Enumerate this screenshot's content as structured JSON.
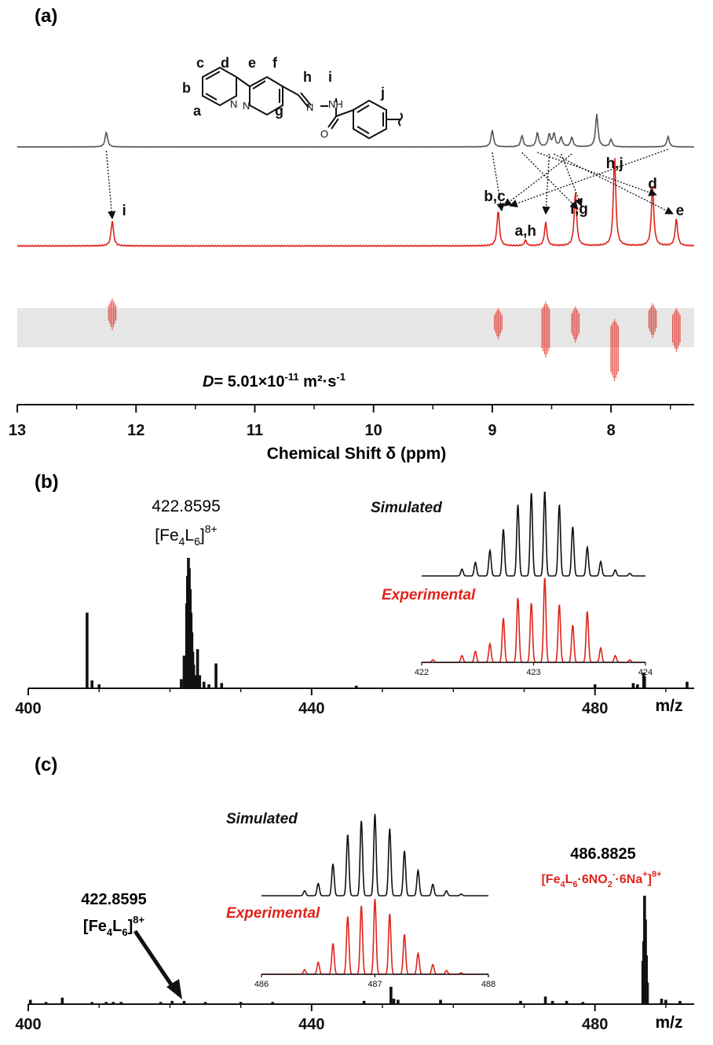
{
  "colors": {
    "black": "#111111",
    "grey": "#555555",
    "red": "#e0231b",
    "band": "#e6e6e6"
  },
  "chart_data": [
    {
      "panel_label": "(a)",
      "type": "line",
      "xlabel": "Chemical Shift δ (ppm)",
      "x_ticks": [
        "13",
        "12",
        "11",
        "10",
        "9",
        "8"
      ],
      "xlim": [
        13.0,
        7.3
      ],
      "x_reversed": true,
      "structure_labels": [
        "c",
        "d",
        "e",
        "f",
        "h",
        "i",
        "b",
        "j",
        "a",
        "g"
      ],
      "series": [
        {
          "color": "grey",
          "peaks": [
            [
              12.25,
              0.32
            ],
            [
              9.0,
              0.36
            ],
            [
              8.75,
              0.24
            ],
            [
              8.62,
              0.3
            ],
            [
              8.52,
              0.26
            ],
            [
              8.48,
              0.28
            ],
            [
              8.42,
              0.2
            ],
            [
              8.33,
              0.2
            ],
            [
              8.12,
              0.7
            ],
            [
              8.0,
              0.16
            ],
            [
              7.52,
              0.22
            ]
          ]
        },
        {
          "color": "red",
          "peaks": [
            [
              12.2,
              0.28
            ],
            [
              8.95,
              0.4
            ],
            [
              8.72,
              0.06
            ],
            [
              8.55,
              0.26
            ],
            [
              8.3,
              0.6
            ],
            [
              7.97,
              1.0
            ],
            [
              7.65,
              0.66
            ],
            [
              7.45,
              0.3
            ]
          ]
        }
      ],
      "peak_annotations": [
        {
          "text": "i",
          "x": 12.2
        },
        {
          "text": "b,c",
          "x": 8.95
        },
        {
          "text": "a,h",
          "x": 8.72
        },
        {
          "text": "f,g",
          "x": 8.3
        },
        {
          "text": "h,j",
          "x": 7.97
        },
        {
          "text": "d",
          "x": 7.65
        },
        {
          "text": "e",
          "x": 7.45
        }
      ],
      "dosy": {
        "d_prefix": "D",
        "d_text": "= 5.01×10",
        "d_exp": "-11",
        "d_unit": " m²·s",
        "d_unit_exp": "-1",
        "signals": [
          12.2,
          8.95,
          8.55,
          8.3,
          7.97,
          7.65,
          7.45
        ]
      }
    },
    {
      "panel_label": "(b)",
      "type": "bar",
      "xlabel": "m/z",
      "x_ticks": [
        "400",
        "440",
        "480"
      ],
      "xlim": [
        400,
        494
      ],
      "peaks": [
        [
          408.3,
          0.58
        ],
        [
          409.0,
          0.06
        ],
        [
          410.0,
          0.03
        ],
        [
          421.6,
          0.07
        ],
        [
          422.0,
          0.25
        ],
        [
          422.36,
          0.65
        ],
        [
          422.48,
          0.86
        ],
        [
          422.61,
          1.0
        ],
        [
          422.73,
          0.92
        ],
        [
          422.86,
          0.76
        ],
        [
          422.98,
          0.58
        ],
        [
          423.1,
          0.43
        ],
        [
          423.23,
          0.28
        ],
        [
          423.35,
          0.18
        ],
        [
          423.6,
          0.1
        ],
        [
          423.9,
          0.3
        ],
        [
          424.2,
          0.1
        ],
        [
          424.8,
          0.05
        ],
        [
          425.5,
          0.03
        ],
        [
          426.5,
          0.19
        ],
        [
          427.3,
          0.04
        ],
        [
          446.3,
          0.02
        ],
        [
          480.0,
          0.03
        ],
        [
          485.4,
          0.04
        ],
        [
          486.0,
          0.03
        ],
        [
          486.88,
          0.12
        ],
        [
          487.0,
          0.09
        ],
        [
          493.0,
          0.05
        ]
      ],
      "annotation": {
        "mz": "422.8595",
        "formula": "[Fe",
        "s1": "4",
        "m1": "L",
        "s2": "6",
        "m2": "]",
        "charge": "8+",
        "x": 422.6
      },
      "inset": {
        "simulated_label": "Simulated",
        "experimental_label": "Experimental",
        "x_ticks": [
          "422",
          "423",
          "424"
        ],
        "xlim": [
          422.0,
          424.0
        ],
        "simulated": [
          [
            422.36,
            0.08
          ],
          [
            422.48,
            0.16
          ],
          [
            422.61,
            0.3
          ],
          [
            422.73,
            0.55
          ],
          [
            422.86,
            0.84
          ],
          [
            422.98,
            0.98
          ],
          [
            423.1,
            1.0
          ],
          [
            423.23,
            0.84
          ],
          [
            423.35,
            0.58
          ],
          [
            423.48,
            0.34
          ],
          [
            423.6,
            0.17
          ],
          [
            423.73,
            0.07
          ],
          [
            423.86,
            0.03
          ]
        ],
        "experimental": [
          [
            422.1,
            0.03
          ],
          [
            422.36,
            0.08
          ],
          [
            422.48,
            0.13
          ],
          [
            422.61,
            0.22
          ],
          [
            422.73,
            0.52
          ],
          [
            422.86,
            0.76
          ],
          [
            422.98,
            0.7
          ],
          [
            423.1,
            1.0
          ],
          [
            423.23,
            0.68
          ],
          [
            423.35,
            0.44
          ],
          [
            423.48,
            0.6
          ],
          [
            423.6,
            0.17
          ],
          [
            423.73,
            0.08
          ],
          [
            423.86,
            0.03
          ]
        ]
      }
    },
    {
      "panel_label": "(c)",
      "type": "bar",
      "xlabel": "m/z",
      "x_ticks": [
        "400",
        "440",
        "480"
      ],
      "xlim": [
        400,
        494
      ],
      "peaks": [
        [
          400.3,
          0.04
        ],
        [
          402.5,
          0.02
        ],
        [
          404.8,
          0.06
        ],
        [
          409.0,
          0.02
        ],
        [
          411.0,
          0.02
        ],
        [
          412.0,
          0.02
        ],
        [
          413.1,
          0.02
        ],
        [
          418.7,
          0.02
        ],
        [
          420.3,
          0.03
        ],
        [
          422.0,
          0.03
        ],
        [
          425.0,
          0.02
        ],
        [
          430.0,
          0.02
        ],
        [
          434.5,
          0.02
        ],
        [
          447.4,
          0.03
        ],
        [
          451.2,
          0.16
        ],
        [
          451.6,
          0.05
        ],
        [
          452.2,
          0.04
        ],
        [
          458.2,
          0.04
        ],
        [
          469.5,
          0.03
        ],
        [
          473.0,
          0.07
        ],
        [
          474.0,
          0.03
        ],
        [
          476.0,
          0.03
        ],
        [
          478.3,
          0.02
        ],
        [
          486.76,
          0.4
        ],
        [
          486.88,
          0.58
        ],
        [
          487.0,
          1.0
        ],
        [
          487.13,
          0.78
        ],
        [
          487.26,
          0.45
        ],
        [
          487.4,
          0.2
        ],
        [
          489.4,
          0.05
        ],
        [
          490.0,
          0.04
        ],
        [
          492.0,
          0.03
        ]
      ],
      "annotations": [
        {
          "mz": "422.8595",
          "formula": "[Fe",
          "s1": "4",
          "m1": "L",
          "s2": "6",
          "m2": "]",
          "charge": "8+",
          "x": 422.8
        },
        {
          "mz": "486.8825",
          "formula": "[Fe",
          "s1": "4",
          "m1": "L",
          "s2": "6",
          "m2": "·6NO",
          "s3": "2",
          "m3": "·6Na",
          "charge": "8+",
          "x": 486.9,
          "color": "red"
        }
      ],
      "inset": {
        "simulated_label": "Simulated",
        "experimental_label": "Experimental",
        "x_ticks": [
          "486",
          "487",
          "488"
        ],
        "xlim": [
          486.0,
          488.0
        ],
        "simulated": [
          [
            486.38,
            0.06
          ],
          [
            486.5,
            0.15
          ],
          [
            486.63,
            0.39
          ],
          [
            486.76,
            0.75
          ],
          [
            486.88,
            0.92
          ],
          [
            487.0,
            1.0
          ],
          [
            487.13,
            0.82
          ],
          [
            487.26,
            0.55
          ],
          [
            487.38,
            0.31
          ],
          [
            487.51,
            0.14
          ],
          [
            487.63,
            0.06
          ],
          [
            487.76,
            0.02
          ]
        ],
        "experimental": [
          [
            486.38,
            0.06
          ],
          [
            486.5,
            0.16
          ],
          [
            486.63,
            0.41
          ],
          [
            486.76,
            0.77
          ],
          [
            486.88,
            0.91
          ],
          [
            487.0,
            1.0
          ],
          [
            487.13,
            0.8
          ],
          [
            487.26,
            0.53
          ],
          [
            487.38,
            0.28
          ],
          [
            487.51,
            0.13
          ],
          [
            487.63,
            0.05
          ],
          [
            487.76,
            0.02
          ]
        ]
      }
    }
  ]
}
